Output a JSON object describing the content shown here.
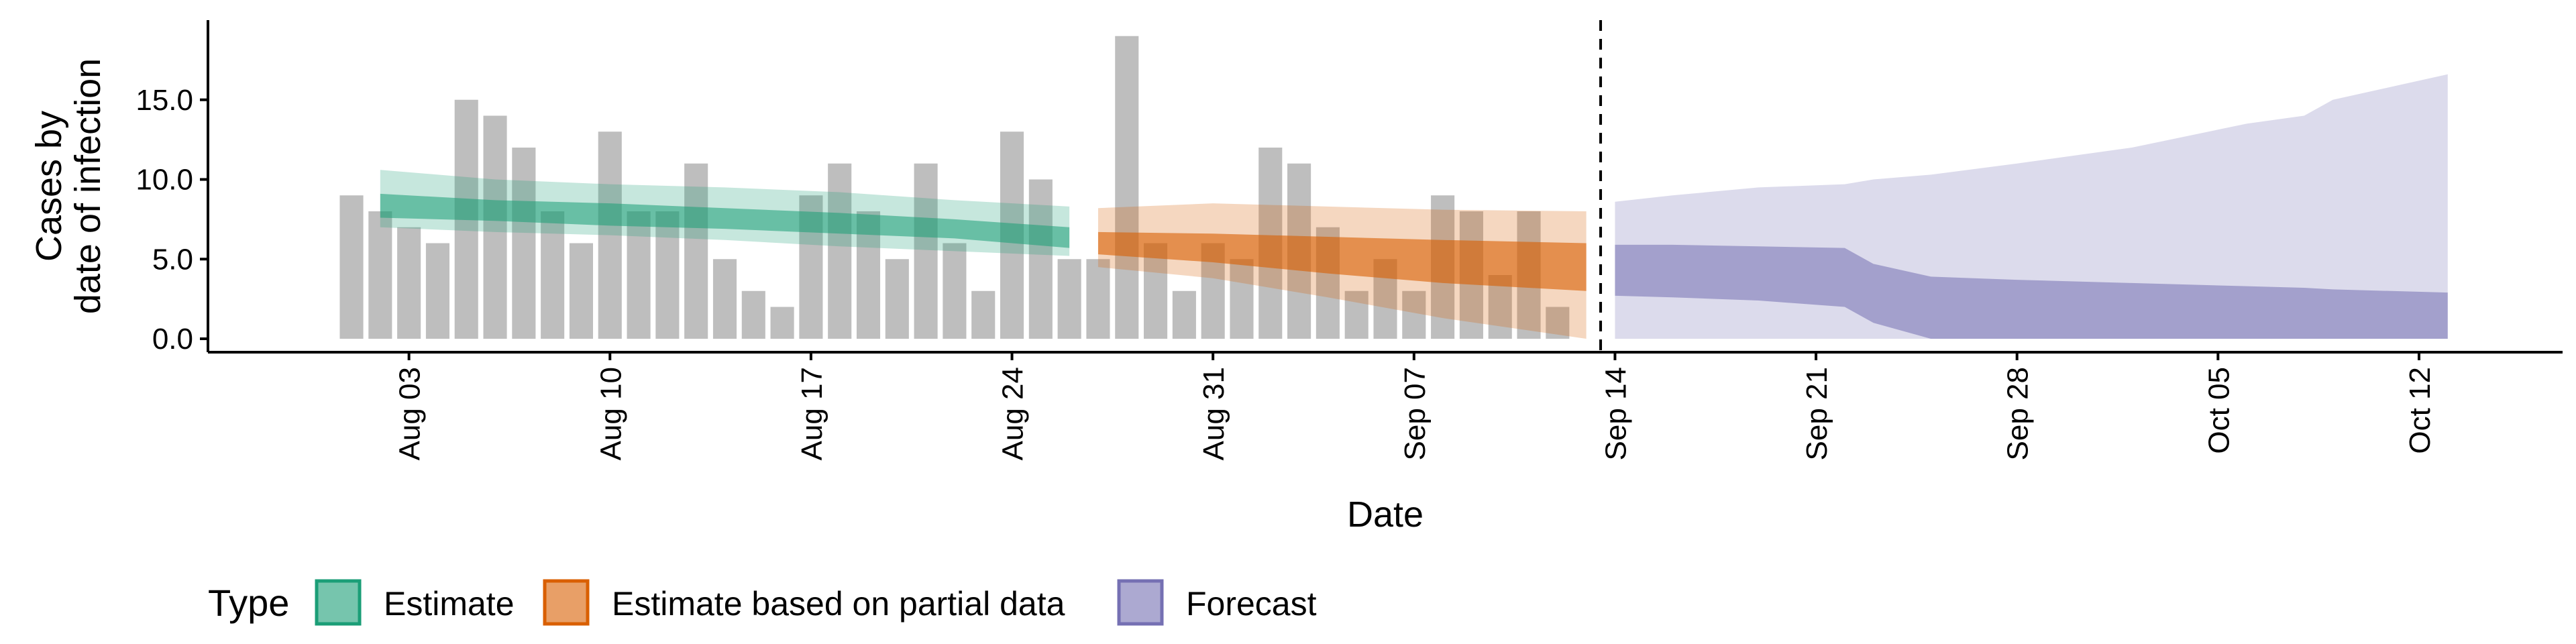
{
  "chart_data": {
    "type": "bar",
    "title": "",
    "xlabel": "Date",
    "ylabel_lines": [
      "Cases by",
      "date of infection"
    ],
    "ylim": [
      0,
      20
    ],
    "y_ticks": [
      {
        "value": 0,
        "label": "0.0"
      },
      {
        "value": 5,
        "label": "5.0"
      },
      {
        "value": 10,
        "label": "10.0"
      },
      {
        "value": 15,
        "label": "15.0"
      }
    ],
    "x_range": [
      "2020-07-27",
      "2020-10-17"
    ],
    "x_ticks": [
      {
        "date": "2020-08-03",
        "label": "Aug 03"
      },
      {
        "date": "2020-08-10",
        "label": "Aug 10"
      },
      {
        "date": "2020-08-17",
        "label": "Aug 17"
      },
      {
        "date": "2020-08-24",
        "label": "Aug 24"
      },
      {
        "date": "2020-08-31",
        "label": "Aug 31"
      },
      {
        "date": "2020-09-07",
        "label": "Sep 07"
      },
      {
        "date": "2020-09-14",
        "label": "Sep 14"
      },
      {
        "date": "2020-09-21",
        "label": "Sep 21"
      },
      {
        "date": "2020-09-28",
        "label": "Sep 28"
      },
      {
        "date": "2020-10-05",
        "label": "Oct 05"
      },
      {
        "date": "2020-10-12",
        "label": "Oct 12"
      }
    ],
    "reported_cases": {
      "dates": [
        "2020-08-01",
        "2020-08-02",
        "2020-08-03",
        "2020-08-04",
        "2020-08-05",
        "2020-08-06",
        "2020-08-07",
        "2020-08-08",
        "2020-08-09",
        "2020-08-10",
        "2020-08-11",
        "2020-08-12",
        "2020-08-13",
        "2020-08-14",
        "2020-08-15",
        "2020-08-16",
        "2020-08-17",
        "2020-08-18",
        "2020-08-19",
        "2020-08-20",
        "2020-08-21",
        "2020-08-22",
        "2020-08-23",
        "2020-08-24",
        "2020-08-25",
        "2020-08-26",
        "2020-08-27",
        "2020-08-28",
        "2020-08-29",
        "2020-08-30",
        "2020-08-31",
        "2020-09-01",
        "2020-09-02",
        "2020-09-03",
        "2020-09-04",
        "2020-09-05",
        "2020-09-06",
        "2020-09-07",
        "2020-09-08",
        "2020-09-09",
        "2020-09-10",
        "2020-09-11",
        "2020-09-12",
        "2020-09-13"
      ],
      "values": [
        9,
        8,
        7,
        6,
        15,
        14,
        12,
        8,
        6,
        13,
        8,
        8,
        11,
        5,
        3,
        2,
        9,
        11,
        8,
        5,
        11,
        6,
        3,
        13,
        10,
        5,
        5,
        19,
        6,
        3,
        6,
        5,
        12,
        11,
        7,
        3,
        5,
        3,
        9,
        8,
        4,
        8,
        2,
        0
      ],
      "color": "#bebebe"
    },
    "estimate_cutoff": "2020-09-13",
    "series": [
      {
        "name": "Estimate",
        "color": "#1b9e77",
        "outer_alpha": 0.25,
        "inner_alpha": 0.55,
        "x": [
          "2020-08-02",
          "2020-08-06",
          "2020-08-10",
          "2020-08-14",
          "2020-08-18",
          "2020-08-22",
          "2020-08-26"
        ],
        "outer_lower": [
          7.0,
          6.7,
          6.5,
          6.2,
          5.8,
          5.5,
          5.2
        ],
        "outer_upper": [
          10.6,
          10.0,
          9.7,
          9.5,
          9.2,
          8.7,
          8.3
        ],
        "inner_lower": [
          7.6,
          7.4,
          7.1,
          6.9,
          6.6,
          6.3,
          5.7
        ],
        "inner_upper": [
          9.1,
          8.7,
          8.5,
          8.2,
          7.9,
          7.5,
          7.0
        ]
      },
      {
        "name": "Estimate based on partial data",
        "color": "#d95f02",
        "outer_alpha": 0.25,
        "inner_alpha": 0.6,
        "x": [
          "2020-08-27",
          "2020-08-31",
          "2020-09-04",
          "2020-09-08",
          "2020-09-13"
        ],
        "outer_lower": [
          4.5,
          3.8,
          2.6,
          1.3,
          0.0
        ],
        "outer_upper": [
          8.2,
          8.5,
          8.3,
          8.1,
          8.0
        ],
        "inner_lower": [
          5.3,
          4.8,
          4.1,
          3.5,
          3.0
        ],
        "inner_upper": [
          6.7,
          6.6,
          6.4,
          6.2,
          6.0
        ]
      },
      {
        "name": "Forecast",
        "color": "#7570b3",
        "outer_alpha": 0.25,
        "inner_alpha": 0.55,
        "x": [
          "2020-09-14",
          "2020-09-16",
          "2020-09-19",
          "2020-09-22",
          "2020-09-23",
          "2020-09-25",
          "2020-09-28",
          "2020-10-02",
          "2020-10-06",
          "2020-10-08",
          "2020-10-09",
          "2020-10-13"
        ],
        "outer_lower": [
          0,
          0,
          0,
          0,
          0,
          0,
          0,
          0,
          0,
          0,
          0,
          0
        ],
        "outer_upper": [
          8.6,
          9.0,
          9.5,
          9.7,
          10.0,
          10.3,
          11.0,
          12.0,
          13.5,
          14.0,
          15.0,
          16.6
        ],
        "inner_lower": [
          2.7,
          2.6,
          2.4,
          2.0,
          1.0,
          0.0,
          0.0,
          0.0,
          0.0,
          0.0,
          0.0,
          0.0
        ],
        "inner_upper": [
          5.9,
          5.9,
          5.8,
          5.7,
          4.7,
          3.9,
          3.7,
          3.5,
          3.3,
          3.2,
          3.1,
          2.9
        ]
      }
    ],
    "legend": {
      "position": "bottom-left",
      "title": "Type",
      "entries": [
        "Estimate",
        "Estimate based on partial data",
        "Forecast"
      ]
    },
    "grid": false
  }
}
